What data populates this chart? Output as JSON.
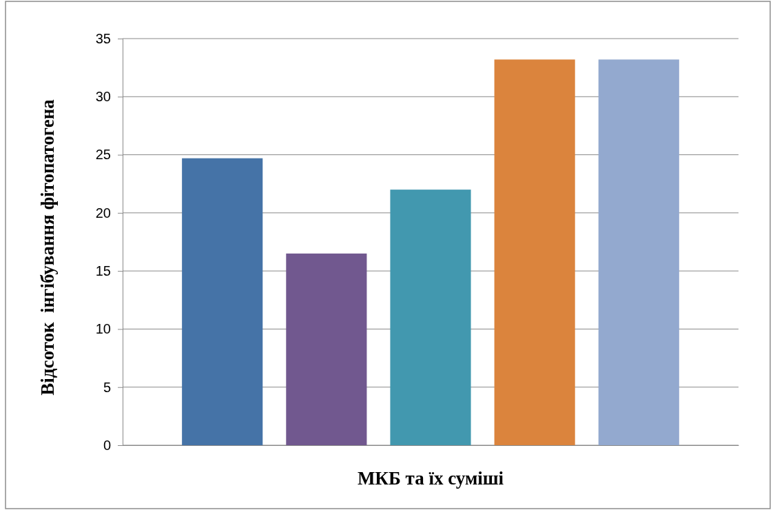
{
  "chart_data": {
    "type": "bar",
    "xlabel": "МКБ та їх суміші",
    "ylabel": "Відсоток  інгібування фітопатогена",
    "categories": [
      null,
      null,
      null,
      null,
      null
    ],
    "values": [
      24.7,
      16.5,
      22,
      33.2,
      33.2
    ],
    "colors": [
      "#4573a7",
      "#71588f",
      "#4298af",
      "#db843d",
      "#93a9cf"
    ],
    "ylim": [
      0,
      35
    ],
    "yticks": [
      0,
      5,
      10,
      15,
      20,
      25,
      30,
      35
    ],
    "grid": "y",
    "tick_labels": "y"
  }
}
